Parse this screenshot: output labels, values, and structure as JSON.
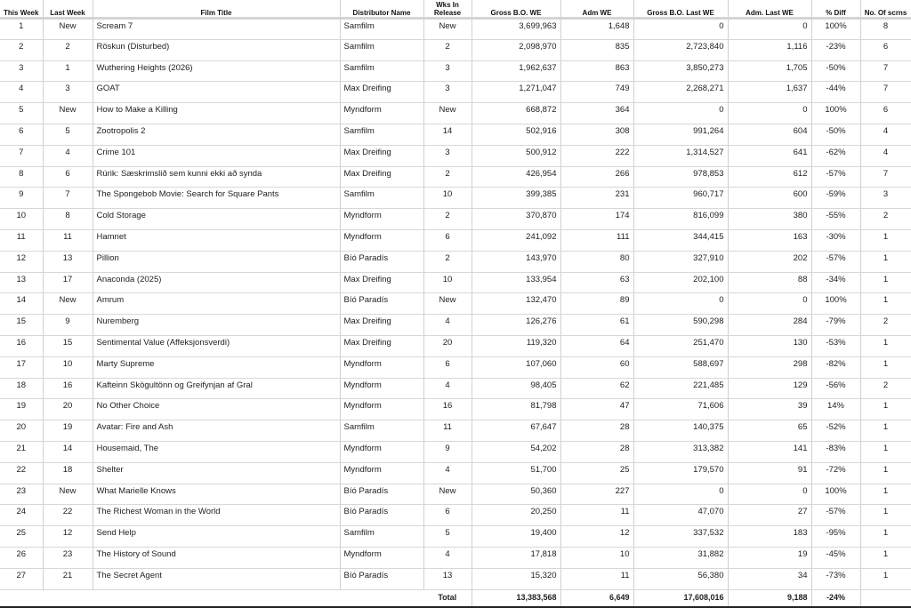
{
  "headers": [
    "This Week",
    "Last Week",
    "Film Title",
    "Distributor Name",
    "Wks In Release",
    "Gross B.O. WE",
    "Adm WE",
    "Gross B.O. Last WE",
    "Adm. Last WE",
    "% Diff",
    "No. Of scrns"
  ],
  "rows": [
    [
      "1",
      "New",
      "Scream 7",
      "Samfilm",
      "New",
      "3,699,963",
      "1,648",
      "0",
      "0",
      "100%",
      "8"
    ],
    [
      "2",
      "2",
      "Röskun (Disturbed)",
      "Samfilm",
      "2",
      "2,098,970",
      "835",
      "2,723,840",
      "1,116",
      "-23%",
      "6"
    ],
    [
      "3",
      "1",
      "Wuthering Heights (2026)",
      "Samfilm",
      "3",
      "1,962,637",
      "863",
      "3,850,273",
      "1,705",
      "-50%",
      "7"
    ],
    [
      "4",
      "3",
      "GOAT",
      "Max Dreifing",
      "3",
      "1,271,047",
      "749",
      "2,268,271",
      "1,637",
      "-44%",
      "7"
    ],
    [
      "5",
      "New",
      "How to Make a Killing",
      "Myndform",
      "New",
      "668,872",
      "364",
      "0",
      "0",
      "100%",
      "6"
    ],
    [
      "6",
      "5",
      "Zootropolis 2",
      "Samfilm",
      "14",
      "502,916",
      "308",
      "991,264",
      "604",
      "-50%",
      "4"
    ],
    [
      "7",
      "4",
      "Crime 101",
      "Max Dreifing",
      "3",
      "500,912",
      "222",
      "1,314,527",
      "641",
      "-62%",
      "4"
    ],
    [
      "8",
      "6",
      "Rúrik: Sæskrimslið sem kunni ekki að synda",
      "Max Dreifing",
      "2",
      "426,954",
      "266",
      "978,853",
      "612",
      "-57%",
      "7"
    ],
    [
      "9",
      "7",
      "The Spongebob Movie: Search for Square Pants",
      "Samfilm",
      "10",
      "399,385",
      "231",
      "960,717",
      "600",
      "-59%",
      "3"
    ],
    [
      "10",
      "8",
      "Cold Storage",
      "Myndform",
      "2",
      "370,870",
      "174",
      "816,099",
      "380",
      "-55%",
      "2"
    ],
    [
      "11",
      "11",
      "Hamnet",
      "Myndform",
      "6",
      "241,092",
      "111",
      "344,415",
      "163",
      "-30%",
      "1"
    ],
    [
      "12",
      "13",
      "Pillion",
      "Bíó Paradís",
      "2",
      "143,970",
      "80",
      "327,910",
      "202",
      "-57%",
      "1"
    ],
    [
      "13",
      "17",
      "Anaconda (2025)",
      "Max Dreifing",
      "10",
      "133,954",
      "63",
      "202,100",
      "88",
      "-34%",
      "1"
    ],
    [
      "14",
      "New",
      "Amrum",
      "Bíó Paradís",
      "New",
      "132,470",
      "89",
      "0",
      "0",
      "100%",
      "1"
    ],
    [
      "15",
      "9",
      "Nuremberg",
      "Max Dreifing",
      "4",
      "126,276",
      "61",
      "590,298",
      "284",
      "-79%",
      "2"
    ],
    [
      "16",
      "15",
      "Sentimental Value (Affeksjonsverdi)",
      "Max Dreifing",
      "20",
      "119,320",
      "64",
      "251,470",
      "130",
      "-53%",
      "1"
    ],
    [
      "17",
      "10",
      "Marty Supreme",
      "Myndform",
      "6",
      "107,060",
      "60",
      "588,697",
      "298",
      "-82%",
      "1"
    ],
    [
      "18",
      "16",
      "Kafteinn Skögultönn og Greifynjan af Gral",
      "Myndform",
      "4",
      "98,405",
      "62",
      "221,485",
      "129",
      "-56%",
      "2"
    ],
    [
      "19",
      "20",
      "No Other Choice",
      "Myndform",
      "16",
      "81,798",
      "47",
      "71,606",
      "39",
      "14%",
      "1"
    ],
    [
      "20",
      "19",
      "Avatar: Fire and Ash",
      "Samfilm",
      "11",
      "67,647",
      "28",
      "140,375",
      "65",
      "-52%",
      "1"
    ],
    [
      "21",
      "14",
      "Housemaid, The",
      "Myndform",
      "9",
      "54,202",
      "28",
      "313,382",
      "141",
      "-83%",
      "1"
    ],
    [
      "22",
      "18",
      "Shelter",
      "Myndform",
      "4",
      "51,700",
      "25",
      "179,570",
      "91",
      "-72%",
      "1"
    ],
    [
      "23",
      "New",
      "What Marielle Knows",
      "Bíó Paradís",
      "New",
      "50,360",
      "227",
      "0",
      "0",
      "100%",
      "1"
    ],
    [
      "24",
      "22",
      "The Richest Woman in the World",
      "Bíó Paradís",
      "6",
      "20,250",
      "11",
      "47,070",
      "27",
      "-57%",
      "1"
    ],
    [
      "25",
      "12",
      "Send Help",
      "Samfilm",
      "5",
      "19,400",
      "12",
      "337,532",
      "183",
      "-95%",
      "1"
    ],
    [
      "26",
      "23",
      "The History of Sound",
      "Myndform",
      "4",
      "17,818",
      "10",
      "31,882",
      "19",
      "-45%",
      "1"
    ],
    [
      "27",
      "21",
      "The Secret Agent",
      "Bíó Paradís",
      "13",
      "15,320",
      "11",
      "56,380",
      "34",
      "-73%",
      "1"
    ]
  ],
  "total": {
    "label": "Total",
    "gross_we": "13,383,568",
    "adm_we": "6,649",
    "gross_last_we": "17,608,016",
    "adm_last_we": "9,188",
    "diff": "-24%"
  }
}
